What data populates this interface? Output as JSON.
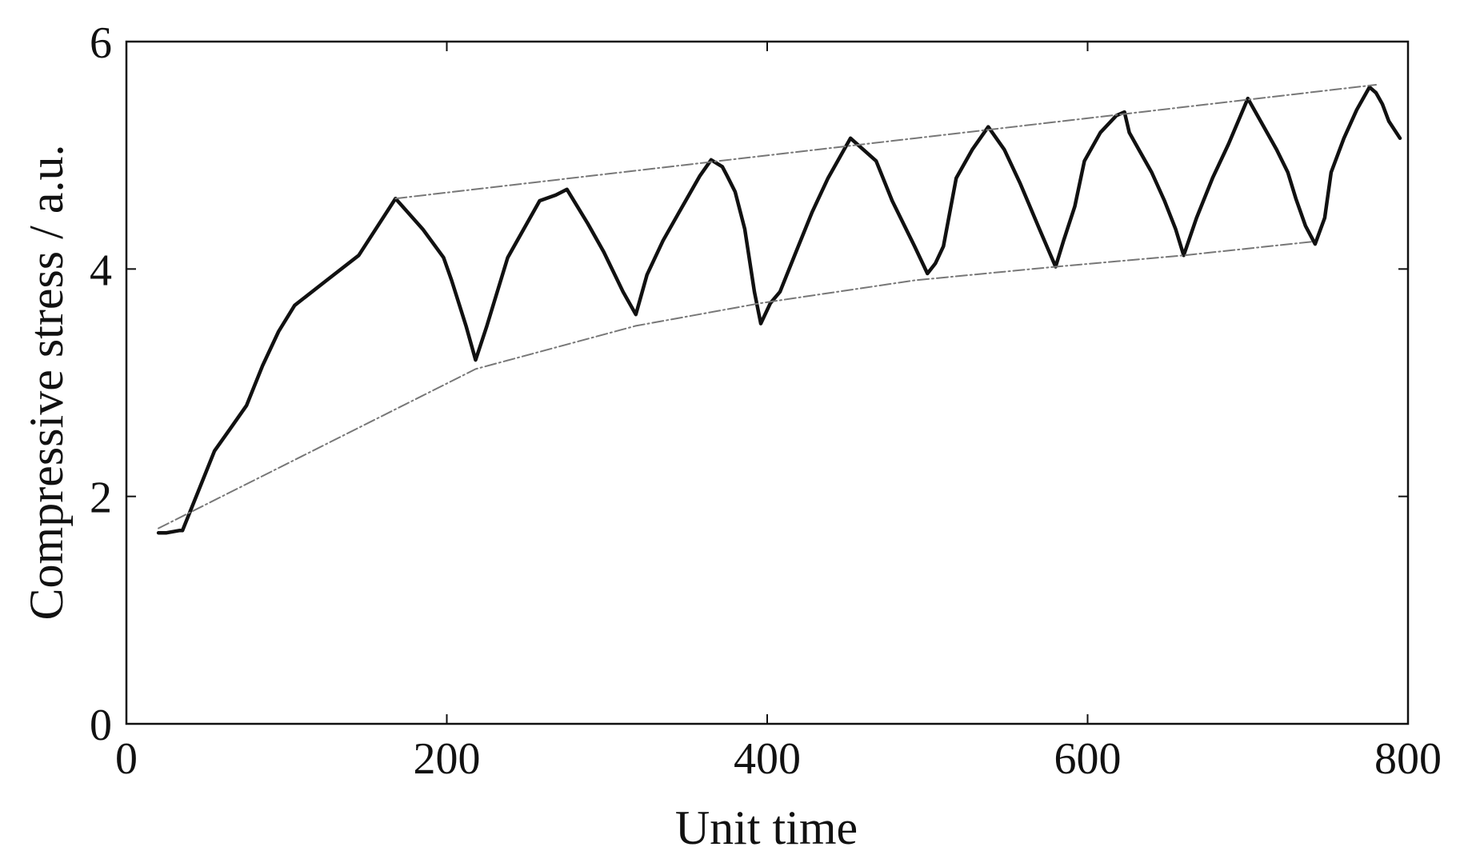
{
  "chart_data": {
    "type": "line",
    "title": "",
    "xlabel": "Unit time",
    "ylabel": "Compressive stress / a.u.",
    "xlim": [
      0,
      800
    ],
    "ylim": [
      0,
      6
    ],
    "xticks": [
      0,
      200,
      400,
      600,
      800
    ],
    "yticks": [
      0,
      2,
      4,
      6
    ],
    "grid": false,
    "series": [
      {
        "role": "measured",
        "style": "solid",
        "color": "#111111",
        "x": [
          20,
          25,
          33,
          35,
          45,
          55,
          65,
          75,
          85,
          95,
          105,
          125,
          145,
          168,
          185,
          198,
          203,
          212,
          218,
          225,
          238,
          258,
          268,
          275,
          288,
          298,
          310,
          318,
          325,
          335,
          345,
          358,
          365,
          372,
          375,
          380,
          386,
          392,
          396,
          402,
          408,
          418,
          428,
          438,
          452,
          460,
          468,
          478,
          492,
          500,
          505,
          510,
          518,
          528,
          538,
          548,
          558,
          570,
          580,
          585,
          592,
          598,
          608,
          618,
          623,
          626,
          632,
          640,
          648,
          655,
          660,
          668,
          678,
          688,
          700,
          708,
          718,
          725,
          730,
          736,
          742,
          748,
          752,
          760,
          768,
          776,
          780,
          784,
          788,
          795
        ],
        "y": [
          1.68,
          1.68,
          1.7,
          1.7,
          2.05,
          2.4,
          2.6,
          2.8,
          3.15,
          3.45,
          3.68,
          3.9,
          4.12,
          4.62,
          4.35,
          4.1,
          3.9,
          3.5,
          3.2,
          3.5,
          4.1,
          4.6,
          4.65,
          4.7,
          4.4,
          4.15,
          3.8,
          3.6,
          3.95,
          4.25,
          4.5,
          4.82,
          4.96,
          4.9,
          4.82,
          4.68,
          4.35,
          3.8,
          3.52,
          3.7,
          3.8,
          4.15,
          4.5,
          4.8,
          5.15,
          5.05,
          4.95,
          4.6,
          4.2,
          3.96,
          4.05,
          4.2,
          4.8,
          5.05,
          5.25,
          5.05,
          4.75,
          4.35,
          4.02,
          4.25,
          4.55,
          4.95,
          5.2,
          5.35,
          5.38,
          5.2,
          5.05,
          4.85,
          4.6,
          4.35,
          4.12,
          4.45,
          4.8,
          5.1,
          5.5,
          5.3,
          5.05,
          4.85,
          4.62,
          4.38,
          4.22,
          4.45,
          4.85,
          5.15,
          5.4,
          5.6,
          5.55,
          5.45,
          5.3,
          5.15
        ]
      },
      {
        "role": "upper-envelope",
        "style": "dash-dot",
        "color": "#777777",
        "x": [
          168,
          780
        ],
        "y": [
          4.62,
          5.62
        ]
      },
      {
        "role": "lower-envelope",
        "style": "dash-dot",
        "color": "#777777",
        "x": [
          20,
          218,
          318,
          396,
          492,
          580,
          660,
          740
        ],
        "y": [
          1.72,
          3.12,
          3.5,
          3.7,
          3.9,
          4.02,
          4.12,
          4.24
        ]
      }
    ]
  }
}
